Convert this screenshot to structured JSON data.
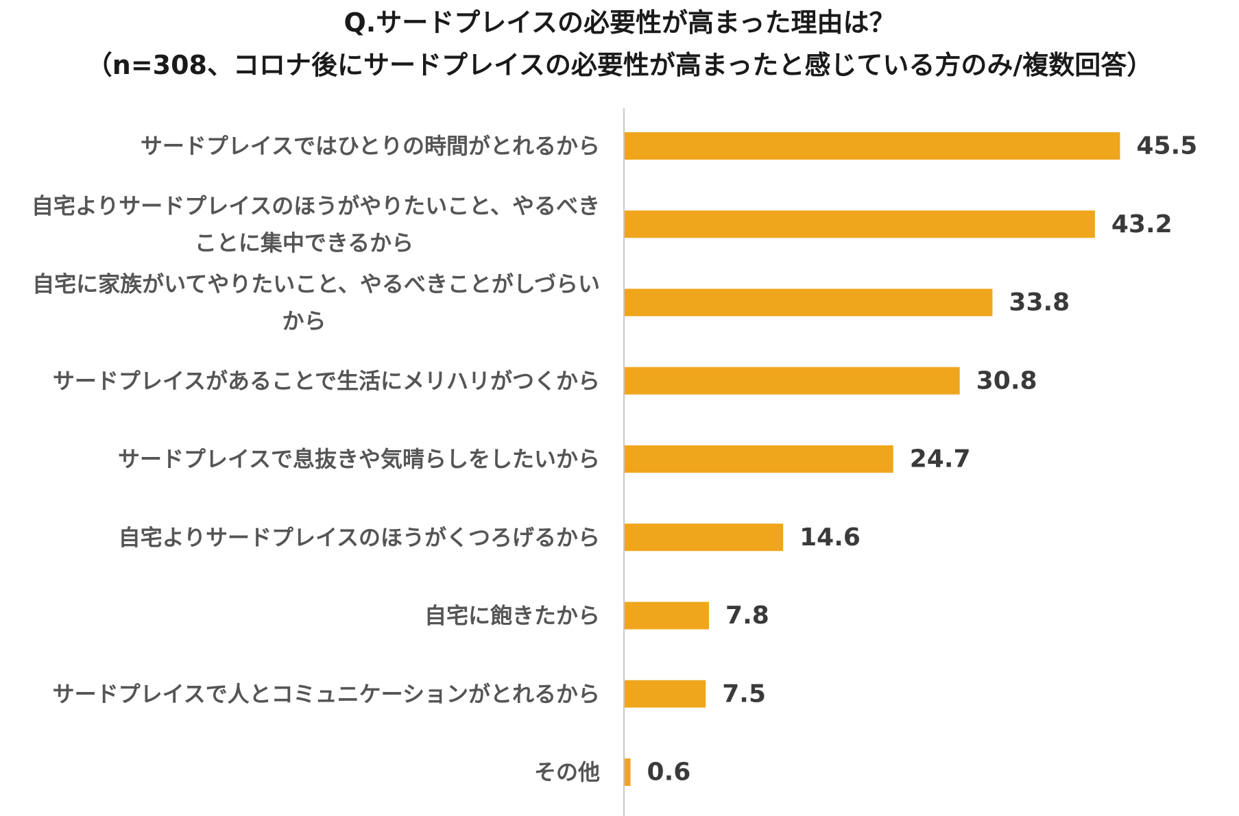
{
  "chart_data": {
    "type": "bar",
    "orientation": "horizontal",
    "title": "Q.サードプレイスの必要性が高まった理由は？",
    "subtitle": "（n=308、コロナ後にサードプレイスの必要性が高まったと感じている方のみ/複数回答）",
    "categories": [
      [
        "サードプレイスではひとりの時間がとれるから"
      ],
      [
        "自宅よりサードプレイスのほうがやりたいこと、やるべき",
        "ことに集中できるから"
      ],
      [
        "自宅に家族がいてやりたいこと、やるべきことがしづらい",
        "から"
      ],
      [
        "サードプレイスがあることで生活にメリハリがつくから"
      ],
      [
        "サードプレイスで息抜きや気晴らしをしたいから"
      ],
      [
        "自宅よりサードプレイスのほうがくつろげるから"
      ],
      [
        "自宅に飽きたから"
      ],
      [
        "サードプレイスで人とコミュニケーションがとれるから"
      ],
      [
        "その他"
      ]
    ],
    "values": [
      45.5,
      43.2,
      33.8,
      30.8,
      24.7,
      14.6,
      7.8,
      7.5,
      0.6
    ],
    "value_labels": [
      "45.5",
      "43.2",
      "33.8",
      "30.8",
      "24.7",
      "14.6",
      "7.8",
      "7.5",
      "0.6"
    ],
    "xlim": [
      0,
      50
    ],
    "grid": false,
    "legend": "none",
    "bar_color": "#EFA61C",
    "axis_color": "#C8C8C8"
  }
}
